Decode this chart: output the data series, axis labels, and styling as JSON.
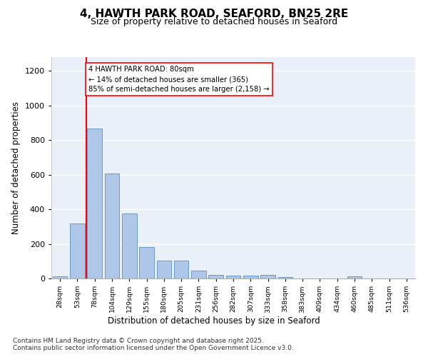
{
  "title": "4, HAWTH PARK ROAD, SEAFORD, BN25 2RE",
  "subtitle": "Size of property relative to detached houses in Seaford",
  "xlabel": "Distribution of detached houses by size in Seaford",
  "ylabel": "Number of detached properties",
  "categories": [
    "28sqm",
    "53sqm",
    "78sqm",
    "104sqm",
    "129sqm",
    "155sqm",
    "180sqm",
    "205sqm",
    "231sqm",
    "256sqm",
    "282sqm",
    "307sqm",
    "333sqm",
    "358sqm",
    "383sqm",
    "409sqm",
    "434sqm",
    "460sqm",
    "485sqm",
    "511sqm",
    "536sqm"
  ],
  "values": [
    13,
    320,
    868,
    605,
    375,
    183,
    105,
    105,
    47,
    22,
    18,
    18,
    20,
    10,
    0,
    0,
    0,
    12,
    0,
    0,
    0
  ],
  "bar_color": "#aec6e8",
  "bar_edge_color": "#5a8fc2",
  "vline_x_idx": 2,
  "vline_color": "red",
  "annotation_text": "4 HAWTH PARK ROAD: 80sqm\n← 14% of detached houses are smaller (365)\n85% of semi-detached houses are larger (2,158) →",
  "annotation_box_color": "white",
  "annotation_box_edge": "red",
  "ylim": [
    0,
    1280
  ],
  "yticks": [
    0,
    200,
    400,
    600,
    800,
    1000,
    1200
  ],
  "background_color": "#eaf0f8",
  "grid_color": "white",
  "footer1": "Contains HM Land Registry data © Crown copyright and database right 2025.",
  "footer2": "Contains public sector information licensed under the Open Government Licence v3.0."
}
